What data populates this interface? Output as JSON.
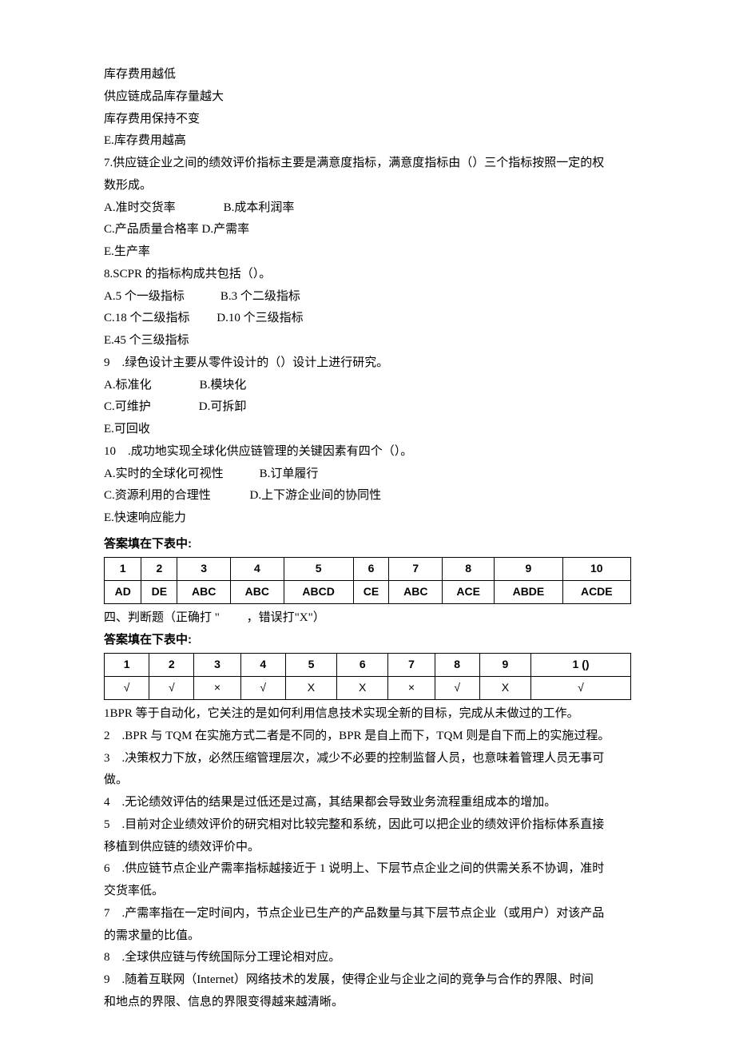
{
  "intro": {
    "l1": "库存费用越低",
    "l2": "供应链成品库存量越大",
    "l3": "库存费用保持不变",
    "l4": "E.库存费用越高"
  },
  "q7": {
    "stem1": "7.供应链企业之间的绩效评价指标主要是满意度指标，满意度指标由（）三个指标按照一定的权",
    "stem2": "数形成。",
    "l1": "A.准时交货率　　　　B.成本利润率",
    "l2": "C.产品质量合格率 D.产需率",
    "l3": "E.生产率"
  },
  "q8": {
    "stem": "8.SCPR 的指标构成共包括（）。",
    "l1": "A.5 个一级指标　　　B.3 个二级指标",
    "l2": "C.18 个二级指标　　 D.10 个三级指标",
    "l3": "E.45 个三级指标"
  },
  "q9": {
    "stem": "9　.绿色设计主要从零件设计的（）设计上进行研究。",
    "l1": "A.标准化　　　　B.模块化",
    "l2": "C.可维护　　　　D.可拆卸",
    "l3": "E.可回收"
  },
  "q10": {
    "stem": "10　.成功地实现全球化供应链管理的关键因素有四个（）。",
    "l1": "A.实时的全球化可视性　　　B.订单履行",
    "l2": "C.资源利用的合理性　　　  D.上下游企业间的协同性",
    "l3": "E.快速响应能力"
  },
  "table1_caption": "答案填在下表中:",
  "table1": {
    "headers": [
      "1",
      "2",
      "3",
      "4",
      "5",
      "6",
      "7",
      "8",
      "9",
      "10"
    ],
    "answers": [
      "AD",
      "DE",
      "ABC",
      "ABC",
      "ABCD",
      "CE",
      "ABC",
      "ACE",
      "ABDE",
      "ACDE"
    ]
  },
  "section4_title": "四、判断题（正确打 \"　　 ，错误打\"X\"）",
  "table2_caption": "答案填在下表中:",
  "table2": {
    "headers": [
      "1",
      "2",
      "3",
      "4",
      "5",
      "6",
      "7",
      "8",
      "9",
      "1 ()"
    ],
    "answers": [
      "√",
      "√",
      "×",
      "√",
      "X",
      "X",
      "×",
      "√",
      "X",
      "√"
    ]
  },
  "judge": {
    "j1": "1BPR 等于自动化，它关注的是如何利用信息技术实现全新的目标，完成从未做过的工作。",
    "j2": "2　.BPR 与 TQM 在实施方式二者是不同的，BPR 是自上而下，TQM 则是自下而上的实施过程。",
    "j3a": "3　.决策权力下放，必然压缩管理层次，减少不必要的控制监督人员，也意味着管理人员无事可",
    "j3b": "做。",
    "j4": "4　.无论绩效评估的结果是过低还是过高，其结果都会导致业务流程重组成本的增加。",
    "j5a": "5　.目前对企业绩效评价的研究相对比较完整和系统，因此可以把企业的绩效评价指标体系直接",
    "j5b": "移植到供应链的绩效评价中。",
    "j6a": "6　.供应链节点企业产需率指标越接近于 1 说明上、下层节点企业之间的供需关系不协调，准时",
    "j6b": "交货率低。",
    "j7a": "7　.产需率指在一定时间内，节点企业已生产的产品数量与其下层节点企业（或用户）对该产品",
    "j7b": "的需求量的比值。",
    "j8": "8　.全球供应链与传统国际分工理论相对应。",
    "j9a": "9　.随着互联网（Internet）网络技术的发展，使得企业与企业之间的竞争与合作的界限、时间",
    "j9b": "和地点的界限、信息的界限变得越来越清晰。"
  }
}
